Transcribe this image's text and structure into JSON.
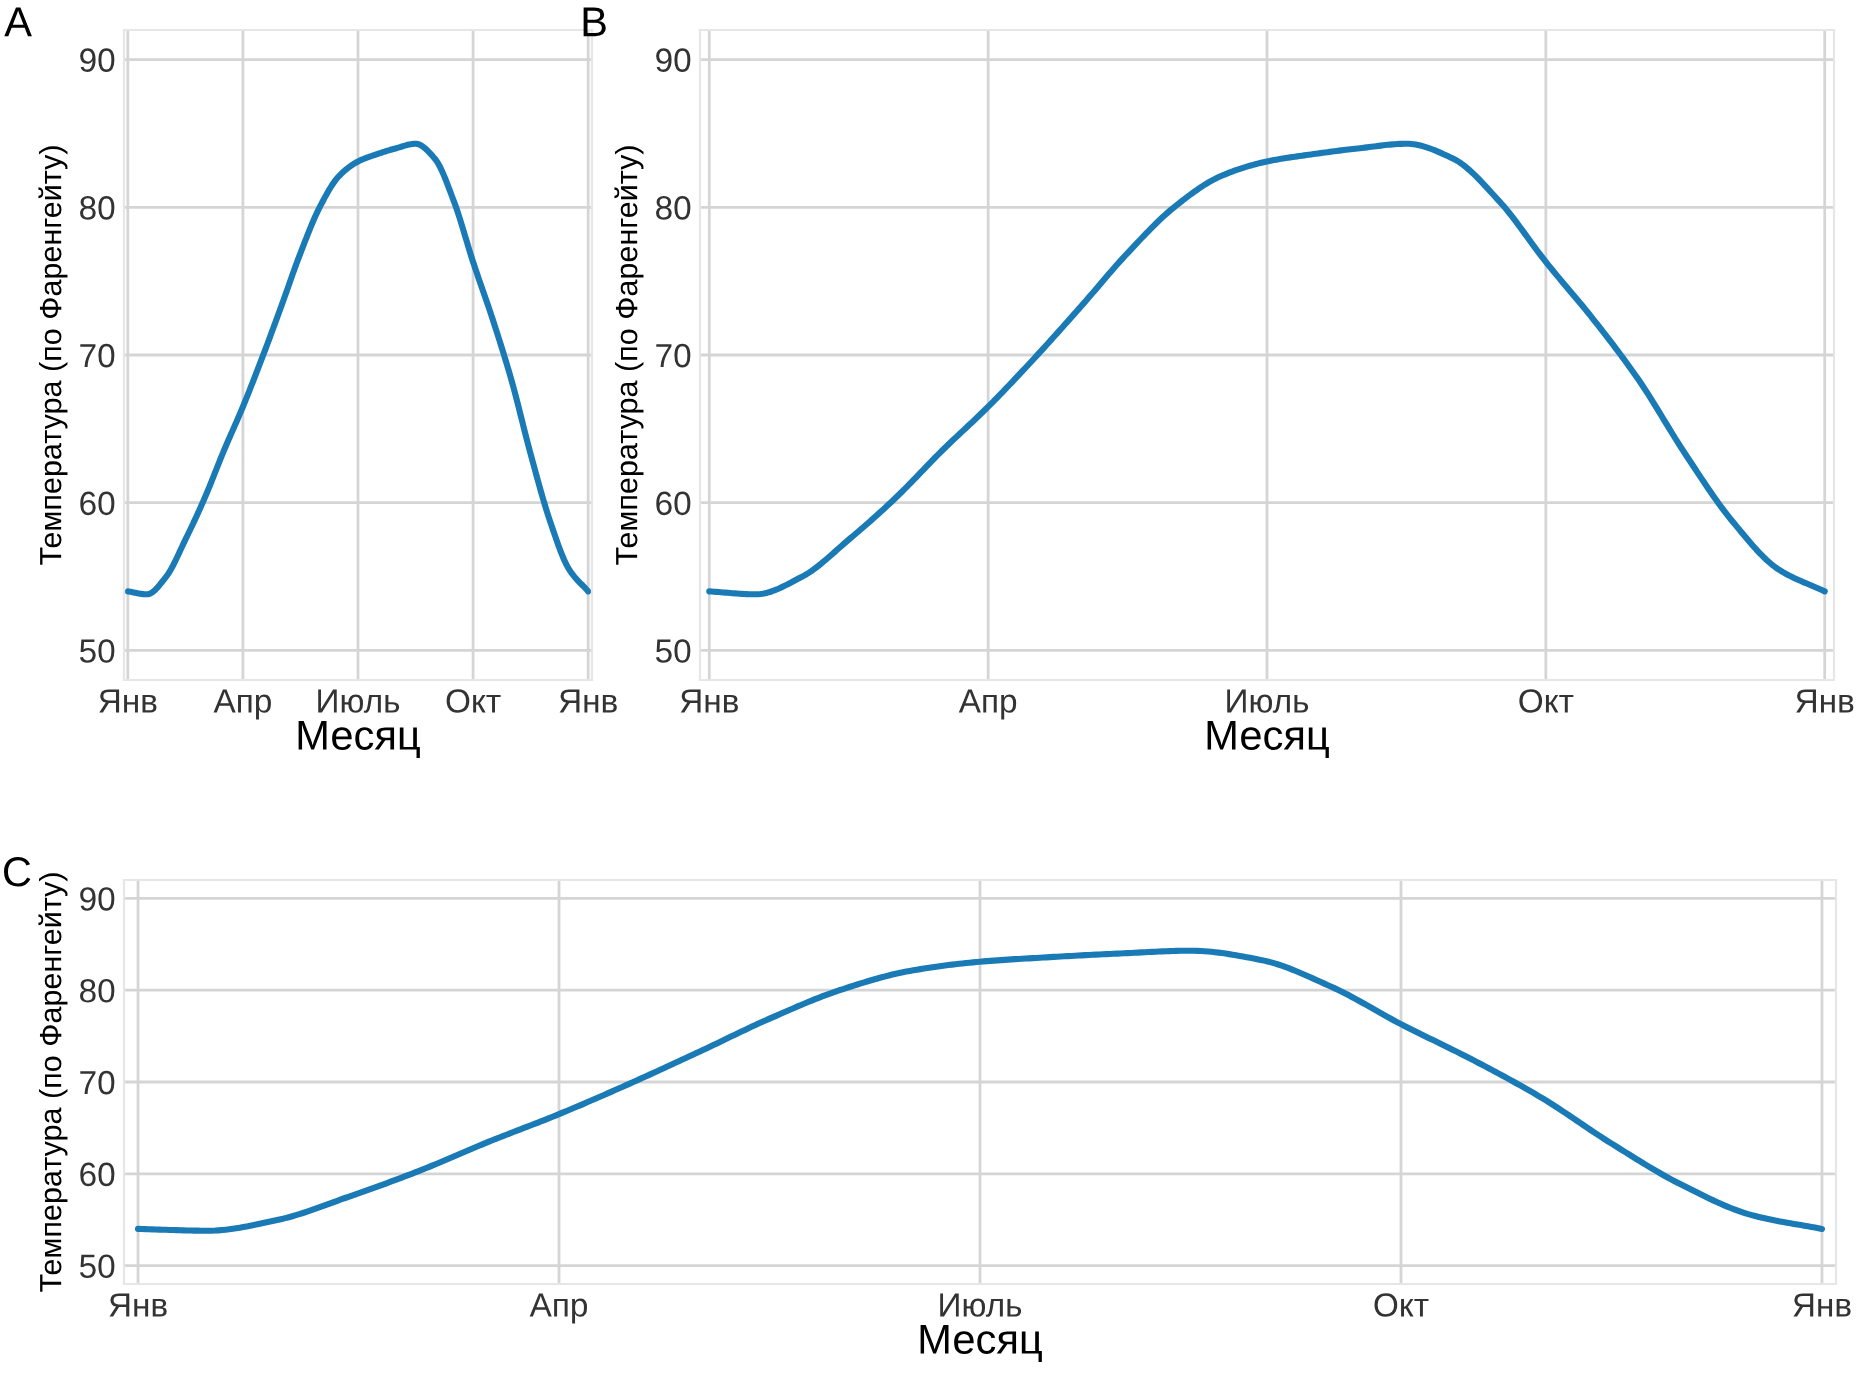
{
  "chart_data": [
    {
      "type": "line",
      "title": "A",
      "xlabel": "Месяц",
      "ylabel": "Температура (по Фаренгейту)",
      "categories": [
        "Янв",
        null,
        null,
        null,
        null,
        null,
        "Апр",
        null,
        null,
        null,
        null,
        null,
        "Июль",
        null,
        null,
        null,
        null,
        null,
        "Окт",
        null,
        null,
        null,
        null,
        null,
        "Янв"
      ],
      "series": [
        {
          "color": "#1a7ab5",
          "values": [
            54.0,
            53.8,
            55.0,
            57.5,
            60.3,
            63.5,
            66.5,
            69.8,
            73.3,
            76.9,
            80.0,
            82.1,
            83.1,
            83.6,
            84.0,
            84.3,
            83.3,
            80.4,
            76.3,
            72.5,
            68.3,
            63.3,
            58.8,
            55.5,
            54.0
          ]
        }
      ],
      "ylim": [
        48,
        92
      ],
      "yticks": [
        50,
        60,
        70,
        80,
        90
      ],
      "grid": true,
      "marker": "none",
      "line_style": "solid"
    },
    {
      "type": "line",
      "title": "B",
      "xlabel": "Месяц",
      "ylabel": "Температура (по Фаренгейту)",
      "categories": [
        "Янв",
        null,
        null,
        null,
        null,
        null,
        "Апр",
        null,
        null,
        null,
        null,
        null,
        "Июль",
        null,
        null,
        null,
        null,
        null,
        "Окт",
        null,
        null,
        null,
        null,
        null,
        "Янв"
      ],
      "series": [
        {
          "color": "#1a7ab5",
          "values": [
            54.0,
            53.8,
            55.0,
            57.5,
            60.3,
            63.5,
            66.5,
            69.8,
            73.3,
            76.9,
            80.0,
            82.1,
            83.1,
            83.6,
            84.0,
            84.3,
            83.3,
            80.4,
            76.3,
            72.5,
            68.3,
            63.3,
            58.8,
            55.5,
            54.0
          ]
        }
      ],
      "ylim": [
        48,
        92
      ],
      "yticks": [
        50,
        60,
        70,
        80,
        90
      ],
      "grid": true,
      "marker": "none",
      "line_style": "solid"
    },
    {
      "type": "line",
      "title": "C",
      "xlabel": "Месяц",
      "ylabel": "Температура (по Фаренгейту)",
      "categories": [
        "Янв",
        null,
        null,
        null,
        null,
        null,
        "Апр",
        null,
        null,
        null,
        null,
        null,
        "Июль",
        null,
        null,
        null,
        null,
        null,
        "Окт",
        null,
        null,
        null,
        null,
        null,
        "Янв"
      ],
      "series": [
        {
          "color": "#1a7ab5",
          "values": [
            54.0,
            53.8,
            55.0,
            57.5,
            60.3,
            63.5,
            66.5,
            69.8,
            73.3,
            76.9,
            80.0,
            82.1,
            83.1,
            83.6,
            84.0,
            84.3,
            83.3,
            80.4,
            76.3,
            72.5,
            68.3,
            63.3,
            58.8,
            55.5,
            54.0
          ]
        }
      ],
      "ylim": [
        48,
        92
      ],
      "yticks": [
        50,
        60,
        70,
        80,
        90
      ],
      "grid": true,
      "marker": "none",
      "line_style": "solid"
    }
  ]
}
